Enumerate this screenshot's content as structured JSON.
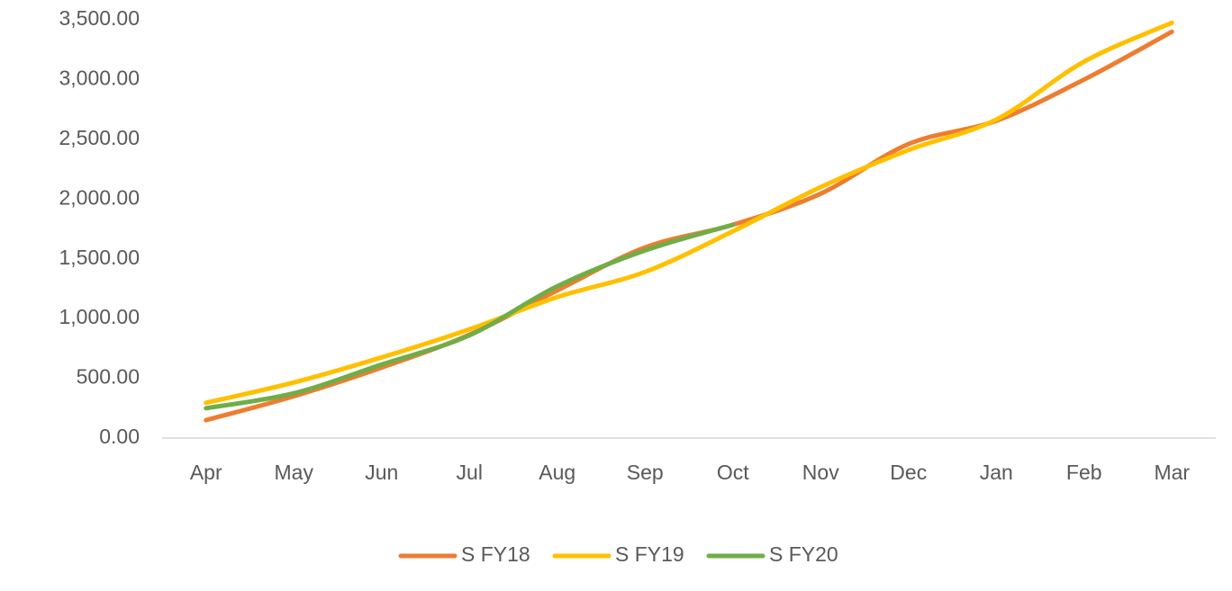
{
  "chart_data": {
    "type": "line",
    "categories": [
      "Apr",
      "May",
      "Jun",
      "Jul",
      "Aug",
      "Sep",
      "Oct",
      "Nov",
      "Dec",
      "Jan",
      "Feb",
      "Mar"
    ],
    "series": [
      {
        "name": "S FY18",
        "color": "#ed7d31",
        "values": [
          150,
          350,
          590,
          865,
          1235,
          1595,
          1785,
          2045,
          2460,
          2655,
          3000,
          3400
        ]
      },
      {
        "name": "S FY19",
        "color": "#ffc000",
        "values": [
          295,
          465,
          675,
          910,
          1180,
          1390,
          1730,
          2100,
          2410,
          2665,
          3150,
          3475
        ]
      },
      {
        "name": "S FY20",
        "color": "#70ad47",
        "values": [
          250,
          375,
          615,
          860,
          1270,
          1570,
          1785,
          null,
          null,
          null,
          null,
          null
        ]
      }
    ],
    "ylim": [
      0,
      3500
    ],
    "yticks": [
      {
        "value": 0,
        "label": "0.00"
      },
      {
        "value": 500,
        "label": "500.00"
      },
      {
        "value": 1000,
        "label": "1,000.00"
      },
      {
        "value": 1500,
        "label": "1,500.00"
      },
      {
        "value": 2000,
        "label": "2,000.00"
      },
      {
        "value": 2500,
        "label": "2,500.00"
      },
      {
        "value": 3000,
        "label": "3,000.00"
      },
      {
        "value": 3500,
        "label": "3,500.00"
      }
    ],
    "grid": false,
    "smooth": true,
    "legend": "bottom"
  }
}
